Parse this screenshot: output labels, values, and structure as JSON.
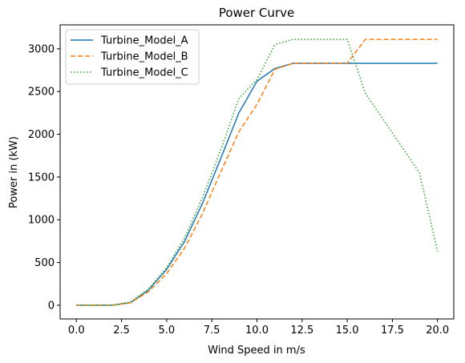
{
  "chart_data": {
    "type": "line",
    "title": "Power Curve",
    "xlabel": "Wind Speed in m/s",
    "ylabel": "Power in (kW)",
    "xlim": [
      -0.9,
      20.9
    ],
    "ylim": [
      -160,
      3280
    ],
    "xticks": [
      0.0,
      2.5,
      5.0,
      7.5,
      10.0,
      12.5,
      15.0,
      17.5,
      20.0
    ],
    "xtick_labels": [
      "0.0",
      "2.5",
      "5.0",
      "7.5",
      "10.0",
      "12.5",
      "15.0",
      "17.5",
      "20.0"
    ],
    "yticks": [
      0,
      500,
      1000,
      1500,
      2000,
      2500,
      3000
    ],
    "ytick_labels": [
      "0",
      "500",
      "1000",
      "1500",
      "2000",
      "2500",
      "3000"
    ],
    "grid": false,
    "legend_position": "top-left",
    "x": [
      0,
      1,
      2,
      3,
      4,
      5,
      6,
      7,
      8,
      9,
      10,
      11,
      12,
      13,
      14,
      15,
      16,
      17,
      18,
      19,
      20
    ],
    "series": [
      {
        "name": "Turbine_Model_A",
        "color": "#1f77b4",
        "style": "solid",
        "values": [
          0,
          0,
          0,
          30,
          180,
          420,
          750,
          1200,
          1720,
          2250,
          2620,
          2770,
          2830,
          2830,
          2830,
          2830,
          2830,
          2830,
          2830,
          2830,
          2830
        ]
      },
      {
        "name": "Turbine_Model_B",
        "color": "#ff7f0e",
        "style": "dashed",
        "values": [
          0,
          0,
          0,
          30,
          160,
          370,
          670,
          1080,
          1560,
          2030,
          2350,
          2760,
          2830,
          2830,
          2830,
          2830,
          3110,
          3110,
          3110,
          3110,
          3110
        ]
      },
      {
        "name": "Turbine_Model_C",
        "color": "#2ca02c",
        "style": "dotted",
        "values": [
          0,
          0,
          0,
          40,
          190,
          440,
          790,
          1270,
          1820,
          2420,
          2640,
          3050,
          3110,
          3110,
          3110,
          3110,
          2480,
          2170,
          1860,
          1550,
          630
        ]
      }
    ]
  }
}
